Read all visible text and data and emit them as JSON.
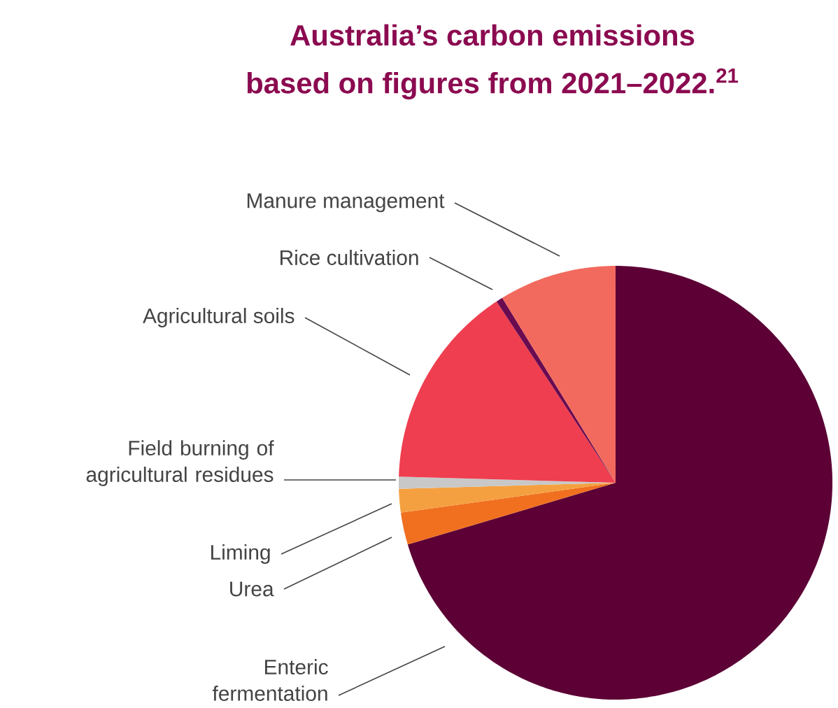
{
  "chart_data": {
    "type": "pie",
    "title": "Australia’s carbon emissions",
    "subtitle": "based on figures from 2021–2022.$^{21}$",
    "categories": [
      "Enteric fermentation",
      "Urea",
      "Liming",
      "Field burning of agricultural residues",
      "Agricultural soils",
      "Rice cultivation",
      "Manure management"
    ],
    "values": [
      70.4,
      2.4,
      1.75,
      0.9,
      15.3,
      0.5,
      8.75
    ],
    "colors": [
      "#5c0035",
      "#f07020",
      "#f5a040",
      "#c8c8c8",
      "#ef3e4f",
      "#6a0a50",
      "#f26a5e"
    ]
  }
}
